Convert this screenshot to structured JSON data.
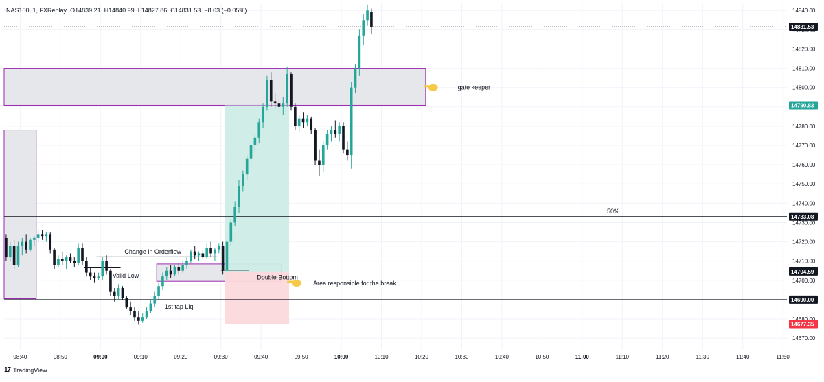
{
  "header": {
    "symbol": "NAS100, 1, FXReplay",
    "open": "O14839.21",
    "high": "H14840.99",
    "low": "L14827.86",
    "close": "C14831.53",
    "change": "−8.03 (−0.05%)"
  },
  "footer": {
    "brand": "TradingView",
    "logo": "17"
  },
  "colors": {
    "up": "#26a69a",
    "down": "#131722",
    "zone_fill": "#e6e7ea",
    "zone_border": "#9c27b0",
    "profit_fill": "#cfece6",
    "loss_fill": "#fbd9db",
    "grid": "#f0f3fa",
    "line": "#131722",
    "price_green": "#26a69a",
    "price_red": "#f23645"
  },
  "chart_data": {
    "type": "candlestick",
    "instrument": "NAS100",
    "timeframe": "1",
    "x_ticks": [
      "08:40",
      "08:50",
      "09:00",
      "09:10",
      "09:20",
      "09:30",
      "09:40",
      "09:50",
      "10:00",
      "10:10",
      "10:20",
      "10:30",
      "10:40",
      "10:50",
      "11:00",
      "11:10",
      "11:20",
      "11:30",
      "11:40",
      "11:50"
    ],
    "y_ticks": [
      14670,
      14680,
      14690,
      14700,
      14710,
      14720,
      14730,
      14740,
      14750,
      14760,
      14770,
      14780,
      14790,
      14800,
      14810,
      14820,
      14830,
      14840
    ],
    "y_tick_labels": [
      "14670.00",
      "14680.00",
      "14690.00",
      "14700.00",
      "14710.00",
      "14720.00",
      "14730.00",
      "14740.00",
      "14750.00",
      "14760.00",
      "14770.00",
      "14780.00",
      "14790.00",
      "14800.00",
      "14810.00",
      "14820.00",
      "14830.00",
      "14840.00"
    ],
    "ylim": [
      14664,
      14844
    ],
    "x_start_time": "08:36",
    "x_end_time": "11:51",
    "grid": true,
    "candles": [
      [
        "08:36",
        14722,
        14724,
        14710,
        14712
      ],
      [
        "08:37",
        14712,
        14720,
        14710,
        14718
      ],
      [
        "08:38",
        14718,
        14721,
        14706,
        14708
      ],
      [
        "08:39",
        14708,
        14720,
        14707,
        14718
      ],
      [
        "08:40",
        14718,
        14722,
        14713,
        14720
      ],
      [
        "08:41",
        14720,
        14724,
        14714,
        14716
      ],
      [
        "08:42",
        14716,
        14722,
        14715,
        14721
      ],
      [
        "08:43",
        14721,
        14723,
        14718,
        14722
      ],
      [
        "08:44",
        14722,
        14726,
        14720,
        14724
      ],
      [
        "08:45",
        14724,
        14726,
        14721,
        14723
      ],
      [
        "08:46",
        14723,
        14725,
        14720,
        14724
      ],
      [
        "08:47",
        14724,
        14725,
        14714,
        14716
      ],
      [
        "08:48",
        14716,
        14717,
        14706,
        14708
      ],
      [
        "08:49",
        14708,
        14713,
        14707,
        14711
      ],
      [
        "08:50",
        14711,
        14715,
        14708,
        14710
      ],
      [
        "08:51",
        14710,
        14713,
        14706,
        14712
      ],
      [
        "08:52",
        14712,
        14714,
        14709,
        14710
      ],
      [
        "08:53",
        14710,
        14712,
        14707,
        14709
      ],
      [
        "08:54",
        14709,
        14719,
        14708,
        14717
      ],
      [
        "08:55",
        14717,
        14719,
        14708,
        14710
      ],
      [
        "08:56",
        14710,
        14712,
        14702,
        14704
      ],
      [
        "08:57",
        14704,
        14707,
        14700,
        14702
      ],
      [
        "08:58",
        14702,
        14704,
        14699,
        14701
      ],
      [
        "08:59",
        14701,
        14704,
        14700,
        14702
      ],
      [
        "09:00",
        14702,
        14712,
        14700,
        14710
      ],
      [
        "09:01",
        14710,
        14713,
        14703,
        14705
      ],
      [
        "09:02",
        14705,
        14706,
        14692,
        14694
      ],
      [
        "09:03",
        14694,
        14696,
        14689,
        14692
      ],
      [
        "09:04",
        14692,
        14698,
        14690,
        14696
      ],
      [
        "09:05",
        14696,
        14697,
        14690,
        14691
      ],
      [
        "09:06",
        14691,
        14692,
        14685,
        14686
      ],
      [
        "09:07",
        14686,
        14689,
        14682,
        14684
      ],
      [
        "09:08",
        14684,
        14686,
        14679,
        14681
      ],
      [
        "09:09",
        14681,
        14684,
        14677,
        14679
      ],
      [
        "09:10",
        14679,
        14683,
        14678,
        14681
      ],
      [
        "09:11",
        14681,
        14686,
        14680,
        14684
      ],
      [
        "09:12",
        14684,
        14690,
        14683,
        14688
      ],
      [
        "09:13",
        14688,
        14694,
        14686,
        14692
      ],
      [
        "09:14",
        14692,
        14699,
        14690,
        14697
      ],
      [
        "09:15",
        14697,
        14704,
        14695,
        14702
      ],
      [
        "09:16",
        14702,
        14707,
        14700,
        14705
      ],
      [
        "09:17",
        14705,
        14708,
        14701,
        14703
      ],
      [
        "09:18",
        14703,
        14708,
        14702,
        14707
      ],
      [
        "09:19",
        14707,
        14709,
        14703,
        14705
      ],
      [
        "09:20",
        14705,
        14710,
        14704,
        14708
      ],
      [
        "09:21",
        14708,
        14712,
        14706,
        14710
      ],
      [
        "09:22",
        14710,
        14716,
        14709,
        14715
      ],
      [
        "09:23",
        14715,
        14718,
        14711,
        14713
      ],
      [
        "09:24",
        14713,
        14715,
        14710,
        14714
      ],
      [
        "09:25",
        14714,
        14716,
        14711,
        14712
      ],
      [
        "09:26",
        14712,
        14719,
        14711,
        14717
      ],
      [
        "09:27",
        14717,
        14720,
        14712,
        14714
      ],
      [
        "09:28",
        14714,
        14717,
        14710,
        14716
      ],
      [
        "09:29",
        14716,
        14719,
        14714,
        14718
      ],
      [
        "09:30",
        14718,
        14720,
        14703,
        14705
      ],
      [
        "09:31",
        14705,
        14722,
        14702,
        14720
      ],
      [
        "09:32",
        14720,
        14732,
        14718,
        14730
      ],
      [
        "09:33",
        14730,
        14741,
        14728,
        14738
      ],
      [
        "09:34",
        14738,
        14752,
        14735,
        14749
      ],
      [
        "09:35",
        14749,
        14757,
        14746,
        14755
      ],
      [
        "09:36",
        14755,
        14765,
        14752,
        14763
      ],
      [
        "09:37",
        14763,
        14772,
        14760,
        14770
      ],
      [
        "09:38",
        14770,
        14776,
        14767,
        14774
      ],
      [
        "09:39",
        14774,
        14784,
        14771,
        14782
      ],
      [
        "09:40",
        14782,
        14792,
        14779,
        14790
      ],
      [
        "09:41",
        14790,
        14806,
        14788,
        14804
      ],
      [
        "09:42",
        14804,
        14808,
        14790,
        14793
      ],
      [
        "09:43",
        14793,
        14797,
        14789,
        14792
      ],
      [
        "09:44",
        14792,
        14794,
        14787,
        14790
      ],
      [
        "09:45",
        14790,
        14795,
        14786,
        14792
      ],
      [
        "09:46",
        14792,
        14811,
        14790,
        14807
      ],
      [
        "09:47",
        14807,
        14808,
        14788,
        14790
      ],
      [
        "09:48",
        14790,
        14792,
        14778,
        14780
      ],
      [
        "09:49",
        14780,
        14786,
        14777,
        14784
      ],
      [
        "09:50",
        14784,
        14787,
        14779,
        14782
      ],
      [
        "09:51",
        14782,
        14786,
        14780,
        14784
      ],
      [
        "09:52",
        14784,
        14785,
        14776,
        14778
      ],
      [
        "09:53",
        14778,
        14779,
        14760,
        14762
      ],
      [
        "09:54",
        14762,
        14768,
        14754,
        14760
      ],
      [
        "09:55",
        14760,
        14772,
        14756,
        14770
      ],
      [
        "09:56",
        14770,
        14778,
        14768,
        14776
      ],
      [
        "09:57",
        14776,
        14780,
        14772,
        14778
      ],
      [
        "09:58",
        14778,
        14783,
        14774,
        14776
      ],
      [
        "09:59",
        14776,
        14782,
        14772,
        14780
      ],
      [
        "10:00",
        14780,
        14782,
        14766,
        14768
      ],
      [
        "10:01",
        14768,
        14772,
        14762,
        14765
      ],
      [
        "10:02",
        14765,
        14803,
        14758,
        14800
      ],
      [
        "10:03",
        14800,
        14812,
        14797,
        14810
      ],
      [
        "10:04",
        14810,
        14830,
        14806,
        14827
      ],
      [
        "10:05",
        14827,
        14838,
        14822,
        14835
      ],
      [
        "10:06",
        14835,
        14843,
        14832,
        14840
      ],
      [
        "10:07",
        14839.21,
        14840.99,
        14827.86,
        14831.53
      ]
    ],
    "horizontal_lines": [
      {
        "price": 14733.08,
        "label": "50%"
      },
      {
        "price": 14690.0
      }
    ],
    "last_price_line": 14831.53,
    "zones": [
      {
        "name": "gate-keeper-zone",
        "start": "08:36",
        "end": "10:21",
        "top": 14810,
        "bottom": 14790.83
      },
      {
        "name": "left-zone",
        "start": "08:36",
        "end": "08:44",
        "top": 14778,
        "bottom": 14690.5
      },
      {
        "name": "double-bottom-zone",
        "start": "09:14",
        "end": "09:45",
        "top": 14708.5,
        "bottom": 14699.5
      }
    ],
    "position": {
      "start": "09:31",
      "end": "09:47",
      "entry": 14704.59,
      "target": 14790.83,
      "stop": 14677.35
    },
    "levels": [
      {
        "name": "change-in-orderflow",
        "start": "08:59",
        "end": "09:29",
        "price": 14712.5
      },
      {
        "name": "valid-low",
        "start": "08:56",
        "end": "09:05",
        "price": 14706.5
      },
      {
        "name": "double-bottom",
        "start": "09:30",
        "end": "09:37",
        "price": 14705.3
      }
    ],
    "price_tags": [
      {
        "value": "14831.53",
        "price": 14831.53,
        "style": "dark"
      },
      {
        "value": "14790.83",
        "price": 14790.83,
        "style": "green"
      },
      {
        "value": "14733.08",
        "price": 14733.08,
        "style": "dark"
      },
      {
        "value": "14704.59",
        "price": 14704.59,
        "style": "dark"
      },
      {
        "value": "14690.00",
        "price": 14690.0,
        "style": "dark"
      },
      {
        "value": "14677.35",
        "price": 14677.35,
        "style": "red"
      }
    ],
    "annotations": [
      {
        "text": "gate keeper",
        "time": "10:29",
        "price": 14800,
        "pointer": true,
        "pointer_time": "10:22"
      },
      {
        "text": "Change in Orderflow",
        "time": "09:06",
        "price": 14714.8
      },
      {
        "text": "Valid Low",
        "time": "09:03",
        "price": 14702.5
      },
      {
        "text": "Double Bottom",
        "time": "09:39",
        "price": 14701.5
      },
      {
        "text": "Area responsible for the break",
        "time": "09:53",
        "price": 14698.5,
        "pointer": true,
        "pointer_time": "09:48"
      },
      {
        "text": "1st tap Liq",
        "time": "09:16",
        "price": 14686.5
      }
    ]
  }
}
